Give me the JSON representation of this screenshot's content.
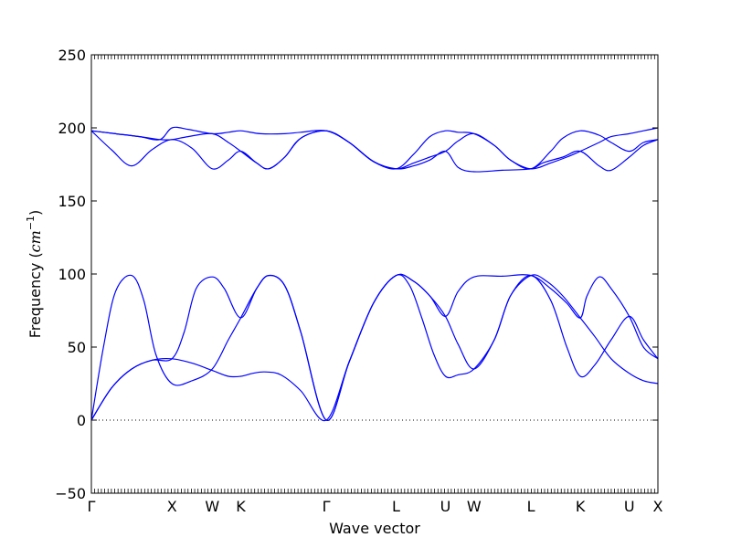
{
  "chart_data": {
    "type": "line",
    "xlabel": "Wave vector",
    "ylabel": "Frequency",
    "ylabel_unit": "cm",
    "ylabel_unit_exp": "−1",
    "ylim": [
      -50,
      250
    ],
    "y_ticks": [
      -50,
      0,
      50,
      100,
      150,
      200,
      250
    ],
    "line_color": "#0000ff",
    "zero_line": true,
    "x_ticks": [
      {
        "label": "Γ",
        "pos": 0.0
      },
      {
        "label": "X",
        "pos": 1.0
      },
      {
        "label": "W",
        "pos": 1.5
      },
      {
        "label": "K",
        "pos": 1.854
      },
      {
        "label": "Γ",
        "pos": 2.915
      },
      {
        "label": "L",
        "pos": 3.781
      },
      {
        "label": "U",
        "pos": 4.394
      },
      {
        "label": "W",
        "pos": 4.748
      },
      {
        "label": "L",
        "pos": 5.455
      },
      {
        "label": "K",
        "pos": 6.067
      },
      {
        "label": "U",
        "pos": 6.675
      },
      {
        "label": "X",
        "pos": 7.03
      }
    ],
    "series": [
      {
        "values": [
          [
            0,
            0
          ],
          [
            0.25,
            22
          ],
          [
            0.5,
            35
          ],
          [
            0.75,
            41
          ],
          [
            1,
            42
          ],
          [
            1.25,
            39
          ],
          [
            1.5,
            34
          ],
          [
            1.7,
            30
          ],
          [
            1.854,
            30
          ],
          [
            2.0,
            32
          ],
          [
            2.15,
            33
          ],
          [
            2.35,
            31
          ],
          [
            2.6,
            20
          ],
          [
            2.915,
            0
          ],
          [
            3.2,
            40
          ],
          [
            3.5,
            80
          ],
          [
            3.781,
            99
          ],
          [
            4.0,
            95
          ],
          [
            4.2,
            85
          ],
          [
            4.394,
            71
          ],
          [
            4.55,
            52
          ],
          [
            4.748,
            35
          ],
          [
            5.0,
            55
          ],
          [
            5.2,
            85
          ],
          [
            5.455,
            99
          ],
          [
            5.65,
            95
          ],
          [
            5.85,
            85
          ],
          [
            6.067,
            70
          ],
          [
            6.25,
            57
          ],
          [
            6.45,
            42
          ],
          [
            6.675,
            32
          ],
          [
            6.85,
            27
          ],
          [
            7.03,
            25
          ]
        ]
      },
      {
        "values": [
          [
            0,
            0
          ],
          [
            0.15,
            50
          ],
          [
            0.3,
            88
          ],
          [
            0.5,
            99
          ],
          [
            0.65,
            82
          ],
          [
            0.8,
            45
          ],
          [
            1,
            25
          ],
          [
            1.25,
            27
          ],
          [
            1.5,
            35
          ],
          [
            1.7,
            55
          ],
          [
            1.854,
            70
          ],
          [
            2.05,
            90
          ],
          [
            2.2,
            99
          ],
          [
            2.4,
            92
          ],
          [
            2.6,
            60
          ],
          [
            2.915,
            0
          ],
          [
            3.2,
            40
          ],
          [
            3.5,
            80
          ],
          [
            3.781,
            99
          ],
          [
            3.95,
            92
          ],
          [
            4.1,
            70
          ],
          [
            4.25,
            45
          ],
          [
            4.394,
            30
          ],
          [
            4.55,
            31
          ],
          [
            4.748,
            35
          ],
          [
            5.0,
            55
          ],
          [
            5.2,
            85
          ],
          [
            5.455,
            99
          ],
          [
            5.7,
            82
          ],
          [
            5.9,
            50
          ],
          [
            6.067,
            30
          ],
          [
            6.25,
            38
          ],
          [
            6.45,
            55
          ],
          [
            6.675,
            71
          ],
          [
            6.85,
            55
          ],
          [
            7.03,
            42
          ]
        ]
      },
      {
        "values": [
          [
            0,
            0
          ],
          [
            0.25,
            22
          ],
          [
            0.5,
            35
          ],
          [
            0.75,
            41
          ],
          [
            1,
            42
          ],
          [
            1.15,
            60
          ],
          [
            1.3,
            90
          ],
          [
            1.5,
            98
          ],
          [
            1.65,
            90
          ],
          [
            1.854,
            70
          ],
          [
            2.05,
            90
          ],
          [
            2.2,
            99
          ],
          [
            2.4,
            92
          ],
          [
            2.6,
            60
          ],
          [
            2.915,
            0
          ],
          [
            3.2,
            40
          ],
          [
            3.5,
            80
          ],
          [
            3.781,
            99
          ],
          [
            4.0,
            95
          ],
          [
            4.2,
            85
          ],
          [
            4.394,
            71
          ],
          [
            4.55,
            88
          ],
          [
            4.748,
            98
          ],
          [
            5.1,
            98.5
          ],
          [
            5.455,
            99
          ],
          [
            5.7,
            90
          ],
          [
            5.9,
            80
          ],
          [
            6.067,
            70
          ],
          [
            6.15,
            85
          ],
          [
            6.3,
            98
          ],
          [
            6.45,
            90
          ],
          [
            6.675,
            71
          ],
          [
            6.85,
            50
          ],
          [
            7.03,
            42
          ]
        ]
      },
      {
        "values": [
          [
            0,
            198
          ],
          [
            0.25,
            185
          ],
          [
            0.5,
            174
          ],
          [
            0.75,
            185
          ],
          [
            1,
            192
          ],
          [
            1.25,
            186
          ],
          [
            1.5,
            172
          ],
          [
            1.7,
            178
          ],
          [
            1.854,
            184
          ],
          [
            2.05,
            176
          ],
          [
            2.2,
            172
          ],
          [
            2.4,
            180
          ],
          [
            2.6,
            193
          ],
          [
            2.915,
            198
          ],
          [
            3.2,
            190
          ],
          [
            3.5,
            177
          ],
          [
            3.781,
            172
          ],
          [
            4.0,
            174
          ],
          [
            4.2,
            178
          ],
          [
            4.394,
            184
          ],
          [
            4.55,
            173
          ],
          [
            4.748,
            170
          ],
          [
            5.1,
            171
          ],
          [
            5.455,
            172
          ],
          [
            5.6,
            176
          ],
          [
            5.85,
            180
          ],
          [
            6.067,
            184
          ],
          [
            6.3,
            174
          ],
          [
            6.45,
            171
          ],
          [
            6.675,
            180
          ],
          [
            6.85,
            188
          ],
          [
            7.03,
            192
          ]
        ]
      },
      {
        "values": [
          [
            0,
            198
          ],
          [
            0.3,
            196
          ],
          [
            0.6,
            194
          ],
          [
            0.85,
            192
          ],
          [
            1,
            192
          ],
          [
            1.2,
            194
          ],
          [
            1.5,
            196
          ],
          [
            1.7,
            190
          ],
          [
            1.854,
            184
          ],
          [
            2.05,
            176
          ],
          [
            2.2,
            172
          ],
          [
            2.4,
            180
          ],
          [
            2.6,
            193
          ],
          [
            2.915,
            198
          ],
          [
            3.2,
            190
          ],
          [
            3.5,
            177
          ],
          [
            3.781,
            172
          ],
          [
            4.0,
            176
          ],
          [
            4.2,
            180
          ],
          [
            4.394,
            184
          ],
          [
            4.55,
            191
          ],
          [
            4.748,
            196
          ],
          [
            5.0,
            188
          ],
          [
            5.2,
            178
          ],
          [
            5.455,
            172
          ],
          [
            5.7,
            176
          ],
          [
            5.9,
            180
          ],
          [
            6.067,
            184
          ],
          [
            6.3,
            190
          ],
          [
            6.45,
            194
          ],
          [
            6.675,
            196
          ],
          [
            6.85,
            198
          ],
          [
            7.03,
            200
          ]
        ]
      },
      {
        "values": [
          [
            0,
            198
          ],
          [
            0.3,
            196
          ],
          [
            0.6,
            194
          ],
          [
            0.85,
            192
          ],
          [
            1,
            200
          ],
          [
            1.2,
            199
          ],
          [
            1.5,
            196
          ],
          [
            1.7,
            197
          ],
          [
            1.854,
            198
          ],
          [
            2.1,
            196
          ],
          [
            2.4,
            196
          ],
          [
            2.6,
            197
          ],
          [
            2.915,
            198
          ],
          [
            3.2,
            190
          ],
          [
            3.5,
            177
          ],
          [
            3.781,
            172
          ],
          [
            4.0,
            182
          ],
          [
            4.2,
            194
          ],
          [
            4.394,
            198
          ],
          [
            4.55,
            197
          ],
          [
            4.748,
            196
          ],
          [
            5.0,
            188
          ],
          [
            5.2,
            178
          ],
          [
            5.455,
            172
          ],
          [
            5.7,
            184
          ],
          [
            5.85,
            193
          ],
          [
            6.067,
            198
          ],
          [
            6.3,
            195
          ],
          [
            6.45,
            190
          ],
          [
            6.675,
            184
          ],
          [
            6.85,
            190
          ],
          [
            7.03,
            192
          ]
        ]
      }
    ]
  }
}
